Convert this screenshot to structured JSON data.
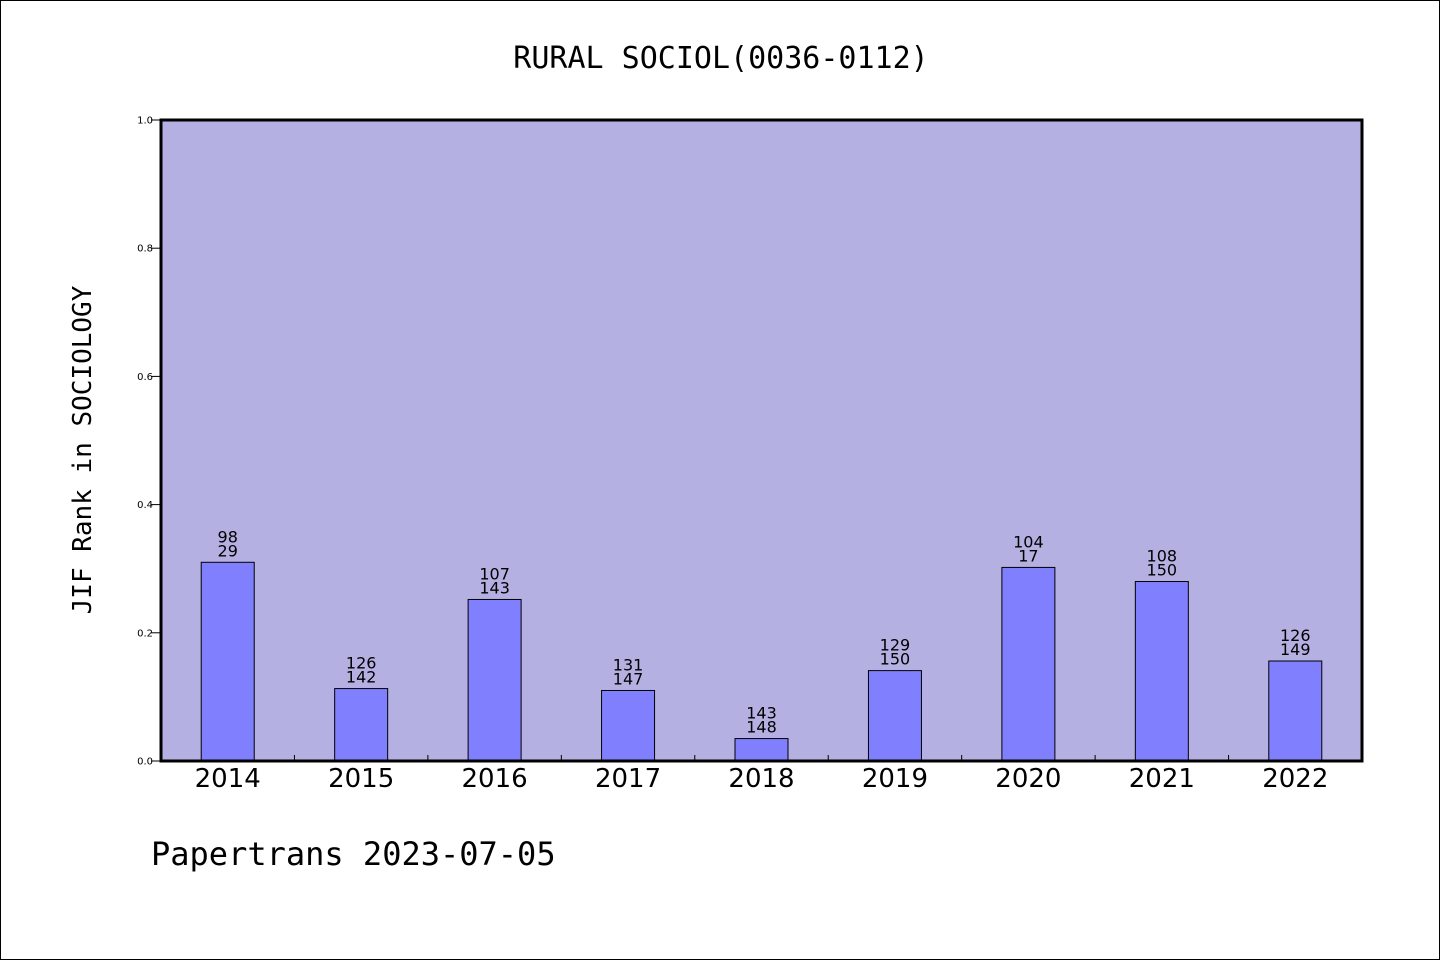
{
  "chart_data": {
    "type": "bar",
    "title": "RURAL SOCIOL(0036-0112)",
    "ylabel": "JIF Rank in SOCIOLOGY",
    "xlabel": "",
    "categories": [
      "2014",
      "2015",
      "2016",
      "2017",
      "2018",
      "2019",
      "2020",
      "2021",
      "2022"
    ],
    "values": [
      0.31,
      0.113,
      0.252,
      0.11,
      0.035,
      0.141,
      0.302,
      0.28,
      0.156
    ],
    "labels_top": [
      "98",
      "126",
      "107",
      "131",
      "143",
      "129",
      "104",
      "108",
      "126"
    ],
    "labels_bottom": [
      "29",
      "142",
      "143",
      "147",
      "148",
      "150",
      "17",
      "150",
      "149"
    ],
    "ylim": [
      0,
      1.0
    ],
    "yticks": [
      "0.0",
      "0.2",
      "0.4",
      "0.6",
      "0.8",
      "1.0"
    ],
    "grid": false,
    "legend": "none",
    "colors": {
      "plot_background": "#b5b0e2",
      "bar_fill": "#8080ff",
      "bar_stroke": "#000000"
    }
  },
  "footer": {
    "text": "Papertrans 2023-07-05"
  }
}
